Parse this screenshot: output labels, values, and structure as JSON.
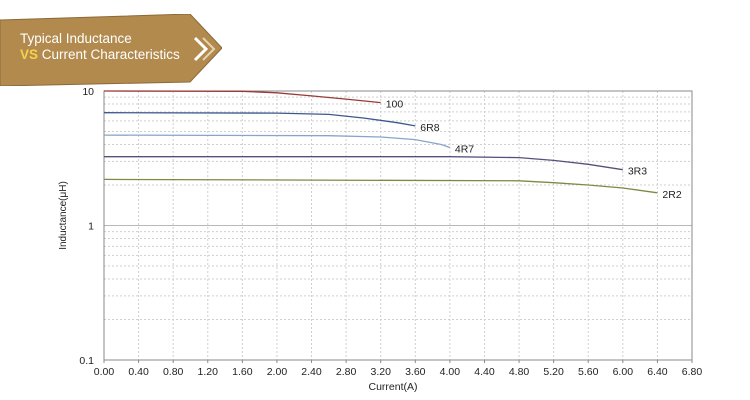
{
  "banner": {
    "line1": "Typical Inductance",
    "line2_prefix": "VS",
    "line2_rest": " Current  Characteristics",
    "bg_color": "#b28a4e",
    "highlight_color": "#f6d24a"
  },
  "chart_data": {
    "type": "line",
    "title": "",
    "xlabel": "Current(A)",
    "ylabel": "Inductance(μH)",
    "xlim": [
      0,
      6.8
    ],
    "ylim": [
      0.1,
      10
    ],
    "yscale": "log",
    "grid": true,
    "xticks": [
      "0.00",
      "0.40",
      "0.80",
      "1.20",
      "1.60",
      "2.00",
      "2.40",
      "2.80",
      "3.20",
      "3.60",
      "4.00",
      "4.40",
      "4.80",
      "5.20",
      "5.60",
      "6.00",
      "6.40",
      "6.80"
    ],
    "yticks": [
      "10",
      "1",
      "0.1"
    ],
    "series": [
      {
        "name": "100",
        "color": "#9a3a36",
        "x": [
          0,
          1.6,
          2.0,
          2.4,
          2.8,
          3.2
        ],
        "y": [
          10,
          9.95,
          9.7,
          9.2,
          8.7,
          8.2
        ]
      },
      {
        "name": "6R8",
        "color": "#3c5a8c",
        "x": [
          0,
          2.0,
          2.6,
          3.0,
          3.4,
          3.6
        ],
        "y": [
          6.9,
          6.85,
          6.7,
          6.3,
          5.8,
          5.5
        ]
      },
      {
        "name": "4R7",
        "color": "#88a4c8",
        "x": [
          0,
          2.6,
          3.2,
          3.6,
          3.9,
          4.0
        ],
        "y": [
          4.7,
          4.65,
          4.55,
          4.35,
          4.0,
          3.8
        ]
      },
      {
        "name": "3R3",
        "color": "#58507c",
        "x": [
          0,
          4.0,
          4.8,
          5.2,
          5.6,
          6.0
        ],
        "y": [
          3.25,
          3.25,
          3.2,
          3.05,
          2.85,
          2.6
        ]
      },
      {
        "name": "2R2",
        "color": "#7a8c44",
        "x": [
          0,
          4.8,
          5.2,
          5.6,
          6.0,
          6.4
        ],
        "y": [
          2.2,
          2.15,
          2.08,
          2.0,
          1.9,
          1.75
        ]
      }
    ]
  }
}
